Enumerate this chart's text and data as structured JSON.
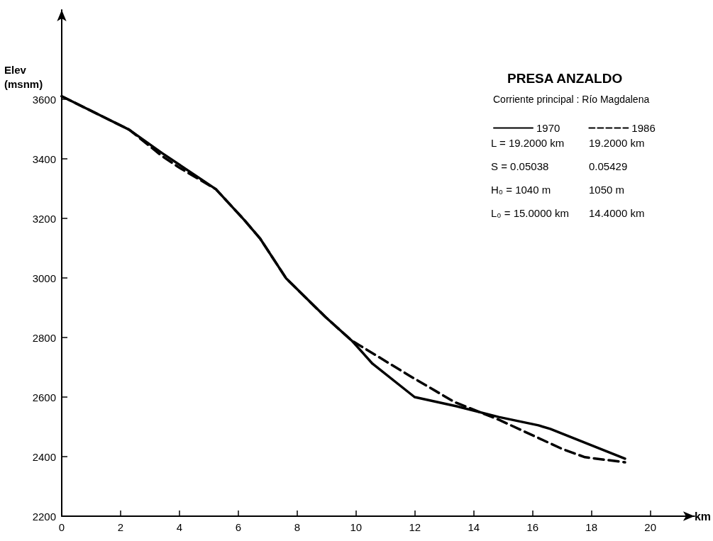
{
  "chart_data": {
    "type": "line",
    "title": "PRESA ANZALDO",
    "subtitle": "Corriente principal : Río Magdalena",
    "xlabel": "km",
    "ylabel": "Elev (msnm)",
    "annotations": [
      "L = 19.2000 km",
      "19.2000 km",
      "S = 0.05038",
      "0.05429",
      "H₀ = 1040 m",
      "1050 m",
      "L₀ = 15.0000 km",
      "14.4000 km"
    ],
    "series": [
      {
        "name": "1970",
        "color": "#000000",
        "line_style": "solid",
        "x": [
          0,
          2.29,
          3.4,
          5.24,
          6.2,
          6.75,
          7.63,
          8.96,
          9.85,
          10.56,
          11.99,
          13.42,
          14.85,
          16.2,
          16.6,
          19.14
        ],
        "values": [
          3610,
          3498,
          3420,
          3298,
          3195,
          3131,
          2998,
          2869,
          2790,
          2712,
          2600,
          2569,
          2533,
          2505,
          2493,
          2393
        ]
      },
      {
        "name": "1986",
        "color": "#000000",
        "line_style": "dashed",
        "x": [
          0,
          2.29,
          3.4,
          4.0,
          5.24,
          6.2,
          6.75,
          7.63,
          8.96,
          9.85,
          11.83,
          13.35,
          14.85,
          17.0,
          17.78,
          19.14
        ],
        "values": [
          3610,
          3498,
          3410,
          3370,
          3298,
          3195,
          3131,
          2998,
          2869,
          2790,
          2671,
          2583,
          2524,
          2426,
          2398,
          2381
        ]
      }
    ],
    "xlim": [
      0,
      21.5
    ],
    "xticks": [
      0,
      2,
      4,
      6,
      8,
      10,
      12,
      14,
      16,
      18,
      20
    ],
    "ylim": [
      2200,
      3900
    ],
    "yticks": [
      2200,
      2400,
      2600,
      2800,
      3000,
      3200,
      3400,
      3600
    ],
    "grid": false,
    "legend": "top right",
    "marker": "none"
  }
}
